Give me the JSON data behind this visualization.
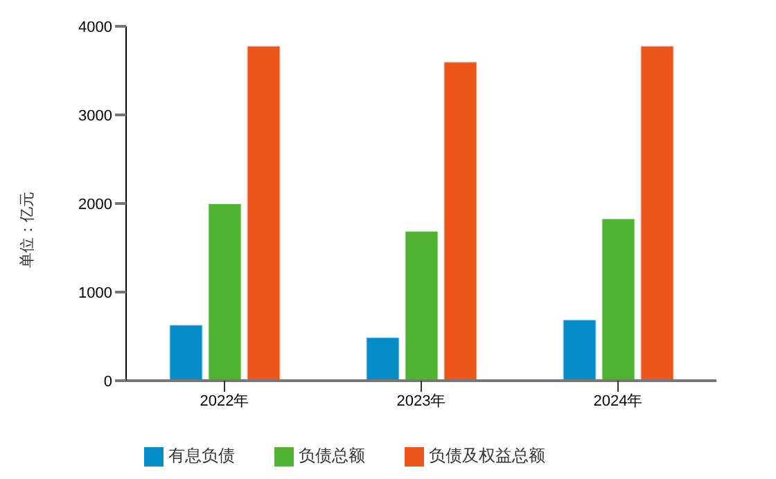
{
  "chart_data": {
    "type": "bar",
    "ylabel": "单位：亿元",
    "categories": [
      "2022年",
      "2023年",
      "2024年"
    ],
    "series": [
      {
        "name": "有息负债",
        "color": "#058dc7",
        "values": [
          630,
          490,
          690
        ]
      },
      {
        "name": "负债总额",
        "color": "#50b432",
        "values": [
          2000,
          1690,
          1830
        ]
      },
      {
        "name": "负债及权益总额",
        "color": "#ed561b",
        "values": [
          3780,
          3600,
          3780
        ]
      }
    ],
    "ylim": [
      0,
      4000
    ],
    "yticks": [
      0,
      1000,
      2000,
      3000,
      4000
    ],
    "grid": false,
    "legend": "bottom"
  }
}
